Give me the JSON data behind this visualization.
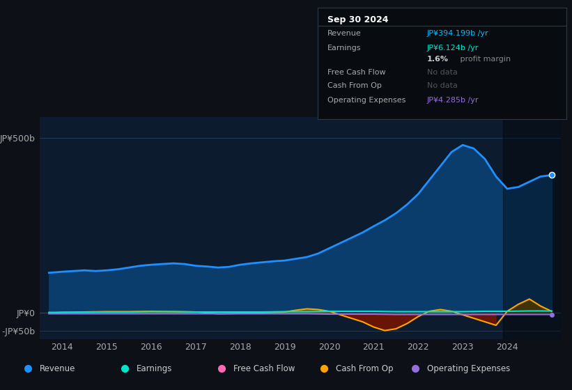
{
  "background_color": "#0d1117",
  "plot_bg_color": "#0d1b2e",
  "grid_color": "#1e3a5f",
  "text_color": "#aaaaaa",
  "title_color": "#ffffff",
  "ylim": [
    -75,
    560
  ],
  "xlim": [
    2013.5,
    2025.2
  ],
  "revenue_color": "#1e90ff",
  "earnings_color": "#00e5cc",
  "fcf_color": "#ff69b4",
  "cashfromop_color": "#ffa500",
  "opex_color": "#9370db",
  "revenue_fill_color": "#0a3d6b",
  "revenue_x": [
    2013.7,
    2014.0,
    2014.25,
    2014.5,
    2014.75,
    2015.0,
    2015.25,
    2015.5,
    2015.75,
    2016.0,
    2016.25,
    2016.5,
    2016.75,
    2017.0,
    2017.25,
    2017.5,
    2017.75,
    2018.0,
    2018.25,
    2018.5,
    2018.75,
    2019.0,
    2019.25,
    2019.5,
    2019.75,
    2020.0,
    2020.25,
    2020.5,
    2020.75,
    2021.0,
    2021.25,
    2021.5,
    2021.75,
    2022.0,
    2022.25,
    2022.5,
    2022.75,
    2023.0,
    2023.25,
    2023.5,
    2023.75,
    2024.0,
    2024.25,
    2024.5,
    2024.75,
    2025.0
  ],
  "revenue_y": [
    115,
    118,
    120,
    122,
    120,
    122,
    125,
    130,
    135,
    138,
    140,
    142,
    140,
    135,
    133,
    130,
    132,
    138,
    142,
    145,
    148,
    150,
    155,
    160,
    170,
    185,
    200,
    215,
    230,
    248,
    265,
    285,
    310,
    340,
    380,
    420,
    460,
    480,
    470,
    440,
    390,
    355,
    360,
    375,
    390,
    394
  ],
  "earnings_x": [
    2013.7,
    2014.5,
    2015.0,
    2015.5,
    2016.0,
    2016.5,
    2017.0,
    2017.5,
    2018.0,
    2018.5,
    2019.0,
    2019.5,
    2020.0,
    2020.5,
    2021.0,
    2021.5,
    2022.0,
    2022.5,
    2023.0,
    2023.5,
    2024.0,
    2024.5,
    2025.0
  ],
  "earnings_y": [
    2,
    2,
    3,
    3,
    4,
    4,
    3,
    3,
    3,
    3,
    4,
    4,
    5,
    5,
    5,
    4,
    4,
    4,
    4,
    5,
    5,
    6,
    6
  ],
  "cashfromop_x": [
    2013.7,
    2014.0,
    2014.5,
    2015.0,
    2015.5,
    2016.0,
    2016.5,
    2017.0,
    2017.5,
    2018.0,
    2018.5,
    2019.0,
    2019.25,
    2019.5,
    2019.75,
    2020.0,
    2020.25,
    2020.5,
    2020.75,
    2021.0,
    2021.25,
    2021.5,
    2021.75,
    2022.0,
    2022.25,
    2022.5,
    2022.75,
    2023.0,
    2023.25,
    2023.5,
    2023.75,
    2024.0,
    2024.25,
    2024.5,
    2024.75,
    2025.0
  ],
  "cashfromop_y": [
    0,
    2,
    3,
    4,
    4,
    5,
    4,
    3,
    -2,
    -1,
    1,
    3,
    8,
    12,
    10,
    5,
    -5,
    -15,
    -25,
    -40,
    -50,
    -45,
    -30,
    -10,
    5,
    10,
    5,
    -5,
    -15,
    -25,
    -35,
    5,
    25,
    40,
    20,
    5
  ],
  "opex_x": [
    2013.7,
    2014.0,
    2014.5,
    2015.0,
    2015.5,
    2016.0,
    2016.5,
    2017.0,
    2017.5,
    2018.0,
    2018.5,
    2019.0,
    2019.5,
    2020.0,
    2020.5,
    2021.0,
    2021.5,
    2022.0,
    2022.5,
    2023.0,
    2023.5,
    2024.0,
    2024.5,
    2025.0
  ],
  "opex_y": [
    -2,
    -2,
    -2,
    -2,
    -2,
    -2,
    -2,
    -2,
    -2,
    -2,
    -2,
    -2,
    -2,
    -3,
    -3,
    -3,
    -4,
    -4,
    -4,
    -4,
    -4,
    -4,
    -4,
    -4
  ],
  "xlabel_years": [
    2014,
    2015,
    2016,
    2017,
    2018,
    2019,
    2020,
    2021,
    2022,
    2023,
    2024
  ],
  "tooltip": {
    "title": "Sep 30 2024",
    "rows": [
      {
        "label": "Revenue",
        "value": "JP¥394.199b /yr",
        "value_color": "#00bfff"
      },
      {
        "label": "Earnings",
        "value": "JP¥6.124b /yr",
        "value_color": "#00e5cc"
      },
      {
        "label": "",
        "value": "1.6% profit margin",
        "value_color": "#aaaaaa"
      },
      {
        "label": "Free Cash Flow",
        "value": "No data",
        "value_color": "#555555"
      },
      {
        "label": "Cash From Op",
        "value": "No data",
        "value_color": "#555555"
      },
      {
        "label": "Operating Expenses",
        "value": "JP¥4.285b /yr",
        "value_color": "#9370db"
      }
    ]
  },
  "legend": [
    {
      "label": "Revenue",
      "color": "#1e90ff"
    },
    {
      "label": "Earnings",
      "color": "#00e5cc"
    },
    {
      "label": "Free Cash Flow",
      "color": "#ff69b4"
    },
    {
      "label": "Cash From Op",
      "color": "#ffa500"
    },
    {
      "label": "Operating Expenses",
      "color": "#9370db"
    }
  ]
}
